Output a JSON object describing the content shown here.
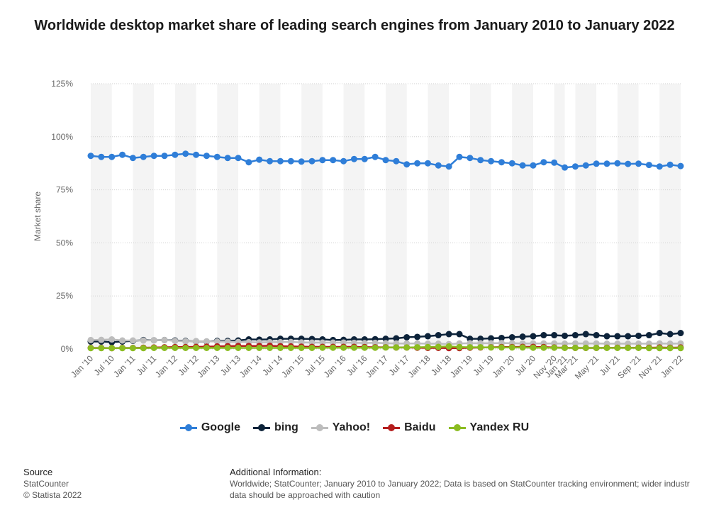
{
  "chart_data": {
    "type": "line",
    "title": "Worldwide desktop market share of leading search engines from January 2010 to January 2022",
    "ylabel": "Market share",
    "xlabel": "",
    "ylim": [
      0,
      125
    ],
    "yticks": [
      0,
      25,
      50,
      75,
      100,
      125
    ],
    "ytick_labels": [
      "0%",
      "25%",
      "50%",
      "75%",
      "100%",
      "125%"
    ],
    "grid": true,
    "legend_position": "bottom",
    "x": [
      "Jan '10",
      "Apr '10",
      "Jul '10",
      "Oct '10",
      "Jan '11",
      "Apr '11",
      "Jul '11",
      "Oct '11",
      "Jan '12",
      "Apr '12",
      "Jul '12",
      "Oct '12",
      "Jan '13",
      "Apr '13",
      "Jul '13",
      "Oct '13",
      "Jan '14",
      "Apr '14",
      "Jul '14",
      "Oct '14",
      "Jan '15",
      "Apr '15",
      "Jul '15",
      "Oct '15",
      "Jan '16",
      "Apr '16",
      "Jul '16",
      "Oct '16",
      "Jan '17",
      "Apr '17",
      "Jul '17",
      "Oct '17",
      "Jan '18",
      "Apr '18",
      "Jul '18",
      "Oct '18",
      "Jan '19",
      "Apr '19",
      "Jul '19",
      "Oct '19",
      "Jan '20",
      "Apr '20",
      "Jul '20",
      "Sep '20",
      "Nov '20",
      "Jan '21",
      "Mar '21",
      "Apr '21",
      "May '21",
      "Jun '21",
      "Jul '21",
      "Aug '21",
      "Sep '21",
      "Oct '21",
      "Nov '21",
      "Dec '21",
      "Jan '22"
    ],
    "x_tick_labels": [
      "Jan '10",
      "Jul '10",
      "Jan '11",
      "Jul '11",
      "Jan '12",
      "Jul '12",
      "Jan '13",
      "Jul '13",
      "Jan '14",
      "Jul '14",
      "Jan '15",
      "Jul '15",
      "Jan '16",
      "Jul '16",
      "Jan '17",
      "Jul '17",
      "Jan '18",
      "Jul '18",
      "Jan '19",
      "Jul '19",
      "Jan '20",
      "Jul '20",
      "Nov '20",
      "Jan '21",
      "Mar '21",
      "May '21",
      "Jul '21",
      "Sep '21",
      "Nov '21",
      "Jan '22"
    ],
    "series": [
      {
        "name": "Google",
        "color": "#2f7ed8",
        "values": [
          91,
          90.5,
          90.5,
          91.5,
          90,
          90.5,
          91,
          91,
          91.5,
          92,
          91.5,
          91,
          90.5,
          90,
          90,
          88,
          89.2,
          88.5,
          88.5,
          88.5,
          88.3,
          88.5,
          89,
          89,
          88.5,
          89.5,
          89.5,
          90.5,
          89,
          88.5,
          87,
          87.5,
          87.5,
          86.5,
          86,
          90.5,
          90,
          89,
          88.5,
          88,
          87.5,
          86.5,
          86.5,
          88,
          87.8,
          85.5,
          86,
          86.5,
          87.3,
          87.3,
          87.5,
          87.2,
          87.3,
          86.7,
          86,
          86.8,
          86.2
        ]
      },
      {
        "name": "bing",
        "color": "#0d233a",
        "values": [
          3.5,
          3.5,
          3.2,
          3.5,
          3.8,
          4.2,
          4.1,
          4.2,
          4,
          3.8,
          3.6,
          3.5,
          3.8,
          3.8,
          4,
          4.5,
          4.4,
          4.5,
          4.8,
          4.8,
          4.8,
          4.7,
          4.5,
          4.2,
          4.3,
          4.5,
          4.5,
          4.6,
          4.8,
          5,
          5.5,
          5.7,
          6,
          6.5,
          7,
          7,
          4.8,
          4.8,
          5,
          5.2,
          5.5,
          5.8,
          6,
          6.5,
          6.5,
          6.2,
          6.5,
          7,
          6.5,
          6,
          6,
          6,
          6.2,
          6.5,
          7.5,
          7,
          7.5
        ]
      },
      {
        "name": "Yahoo!",
        "color": "#bdbdbd",
        "values": [
          4.2,
          4.3,
          4.5,
          4,
          4,
          4,
          4.1,
          4.2,
          3.8,
          3.6,
          3.7,
          3.6,
          3.5,
          3.4,
          3.3,
          3.2,
          3.1,
          3.2,
          3.2,
          3.3,
          3.1,
          3,
          3,
          3,
          3,
          2.9,
          2.8,
          2.9,
          2.7,
          2.6,
          2.6,
          2.6,
          2.5,
          2.5,
          2.3,
          2.6,
          2.7,
          2.7,
          2.7,
          2.8,
          2.7,
          2.6,
          2.6,
          2.6,
          2.6,
          2.5,
          2.6,
          2.6,
          2.6,
          2.5,
          2.5,
          2.5,
          2.5,
          2.5,
          2.6,
          2.5,
          2.6
        ]
      },
      {
        "name": "Baidu",
        "color": "#b51e1e",
        "values": [
          0.5,
          0.5,
          0.4,
          0.5,
          0.5,
          0.6,
          0.7,
          0.8,
          0.9,
          0.9,
          1,
          1.1,
          1.2,
          1.3,
          1.4,
          1.4,
          1.4,
          1.5,
          1.3,
          1.2,
          1.1,
          1,
          1,
          1,
          1,
          1,
          0.9,
          0.8,
          0.8,
          0.7,
          0.7,
          0.6,
          0.5,
          0.5,
          0.4,
          0.4,
          0.6,
          0.7,
          0.8,
          0.9,
          0.9,
          1,
          1,
          0.9,
          0.7,
          0.6,
          0.5,
          0.5,
          0.5,
          0.6,
          0.6,
          0.6,
          0.6,
          0.6,
          0.7,
          0.6,
          0.7
        ]
      },
      {
        "name": "Yandex RU",
        "color": "#8bbc21",
        "values": [
          0.4,
          0.4,
          0.4,
          0.4,
          0.4,
          0.4,
          0.5,
          0.5,
          0.5,
          0.5,
          0.5,
          0.5,
          0.5,
          0.5,
          0.5,
          0.5,
          0.5,
          0.5,
          0.5,
          0.5,
          0.5,
          0.5,
          0.6,
          0.6,
          0.6,
          0.6,
          0.6,
          0.6,
          0.7,
          0.7,
          0.7,
          0.8,
          0.9,
          1,
          1.2,
          0.9,
          0.8,
          0.8,
          0.7,
          0.7,
          0.7,
          0.7,
          0.6,
          0.6,
          0.6,
          0.5,
          0.5,
          0.5,
          0.5,
          0.5,
          0.5,
          0.5,
          0.5,
          0.4,
          0.4,
          0.4,
          0.4
        ]
      }
    ]
  },
  "footer": {
    "source_heading": "Source",
    "source_line1": "StatCounter",
    "source_line2": "© Statista 2022",
    "info_heading": "Additional Information:",
    "info_line1": "Worldwide; StatCounter; January 2010 to January 2022; Data is based on StatCounter tracking environment; wider industr",
    "info_line2": "data should be approached with caution"
  }
}
